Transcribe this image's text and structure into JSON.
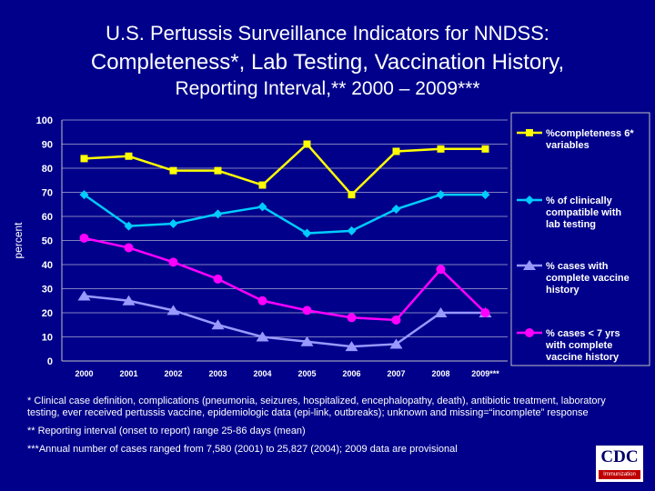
{
  "title": {
    "line1": "U.S. Pertussis Surveillance Indicators for NNDSS:",
    "line2": "Completeness*, Lab Testing, Vaccination History,",
    "line3": "Reporting Interval,** 2000 – 2009***"
  },
  "chart_data": {
    "type": "line",
    "ylabel": "percent",
    "xlabel": "",
    "ylim": [
      0,
      100
    ],
    "yticks": [
      0,
      10,
      20,
      30,
      40,
      50,
      60,
      70,
      80,
      90,
      100
    ],
    "grid": true,
    "legend_position": "right",
    "categories": [
      "2000",
      "2001",
      "2002",
      "2003",
      "2004",
      "2005",
      "2006",
      "2007",
      "2008",
      "2009***"
    ],
    "series": [
      {
        "name": "%completeness 6* variables",
        "color": "#ffff00",
        "marker": "square",
        "values": [
          84,
          85,
          79,
          79,
          73,
          90,
          69,
          87,
          88,
          88
        ]
      },
      {
        "name": "% of clinically compatible with lab testing",
        "color": "#00ccff",
        "marker": "diamond",
        "values": [
          69,
          56,
          57,
          61,
          64,
          53,
          54,
          63,
          69,
          69
        ]
      },
      {
        "name": "% cases with complete vaccine history",
        "color": "#9999ff",
        "marker": "triangle",
        "values": [
          27,
          25,
          21,
          15,
          10,
          8,
          6,
          7,
          20,
          20
        ]
      },
      {
        "name": "% cases < 7 yrs with complete vaccine history",
        "color": "#ff00ff",
        "marker": "circle",
        "values": [
          51,
          47,
          41,
          34,
          25,
          21,
          18,
          17,
          38,
          20
        ]
      }
    ]
  },
  "footnotes": {
    "note1": "* Clinical case definition, complications (pneumonia, seizures, hospitalized, encephalopathy, death), antibiotic treatment, laboratory testing, ever received pertussis vaccine, epidemiologic data (epi-link, outbreaks); unknown and missing=“incomplete” response",
    "note2": "** Reporting interval (onset to report) range 25-86 days (mean)",
    "note3": "***Annual number of cases ranged from 7,580 (2001) to 25,827 (2004); 2009 data are provisional"
  },
  "logo": {
    "text": "CDC",
    "subtext": "Immunization"
  }
}
